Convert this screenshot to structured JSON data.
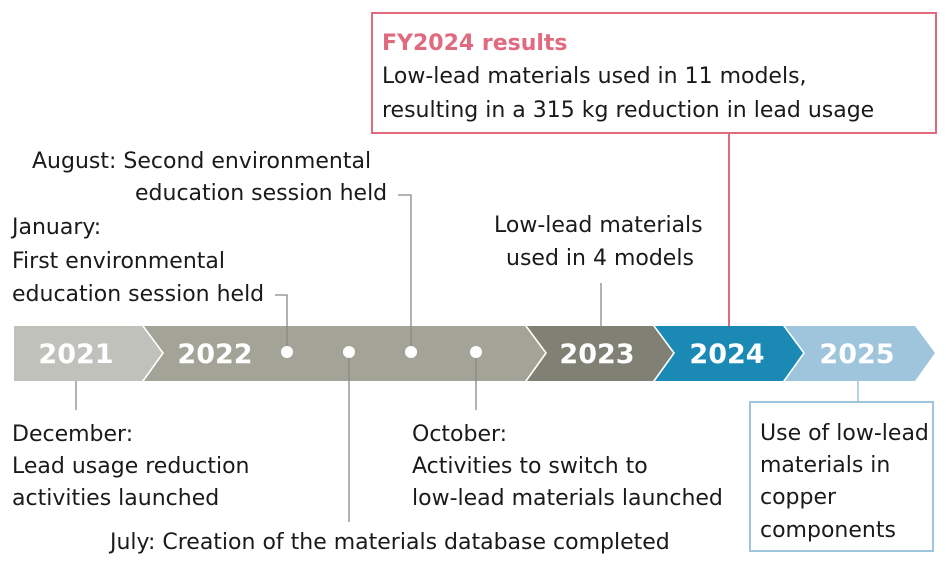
{
  "colors": {
    "y2021": "#c1c1bb",
    "y2022": "#a3a398",
    "y2023": "#808075",
    "y2024": "#1a8ab4",
    "y2025": "#9fc5dc",
    "highlight": "#e06a7f"
  },
  "years": [
    "2021",
    "2022",
    "2023",
    "2024",
    "2025"
  ],
  "callouts": {
    "fy2024": {
      "title": "FY2024 results",
      "line1": "Low-lead materials used in 11 models,",
      "line2": "resulting in a 315 kg reduction in lead usage"
    },
    "august": {
      "line1": "August: Second environmental",
      "line2": "education session held"
    },
    "january": {
      "line1": "January:",
      "line2": "First environmental",
      "line3": "education session held"
    },
    "y2023": {
      "line1": "Low-lead materials",
      "line2": "used in 4 models"
    },
    "december": {
      "line1": "December:",
      "line2": "Lead usage reduction",
      "line3": "activities launched"
    },
    "october": {
      "line1": "October:",
      "line2": "Activities to switch to",
      "line3": "low-lead materials launched"
    },
    "july": {
      "line1": "July: Creation of the materials database completed"
    },
    "y2025": {
      "line1": "Use of low-lead",
      "line2": "materials in",
      "line3": "copper",
      "line4": "components"
    }
  }
}
